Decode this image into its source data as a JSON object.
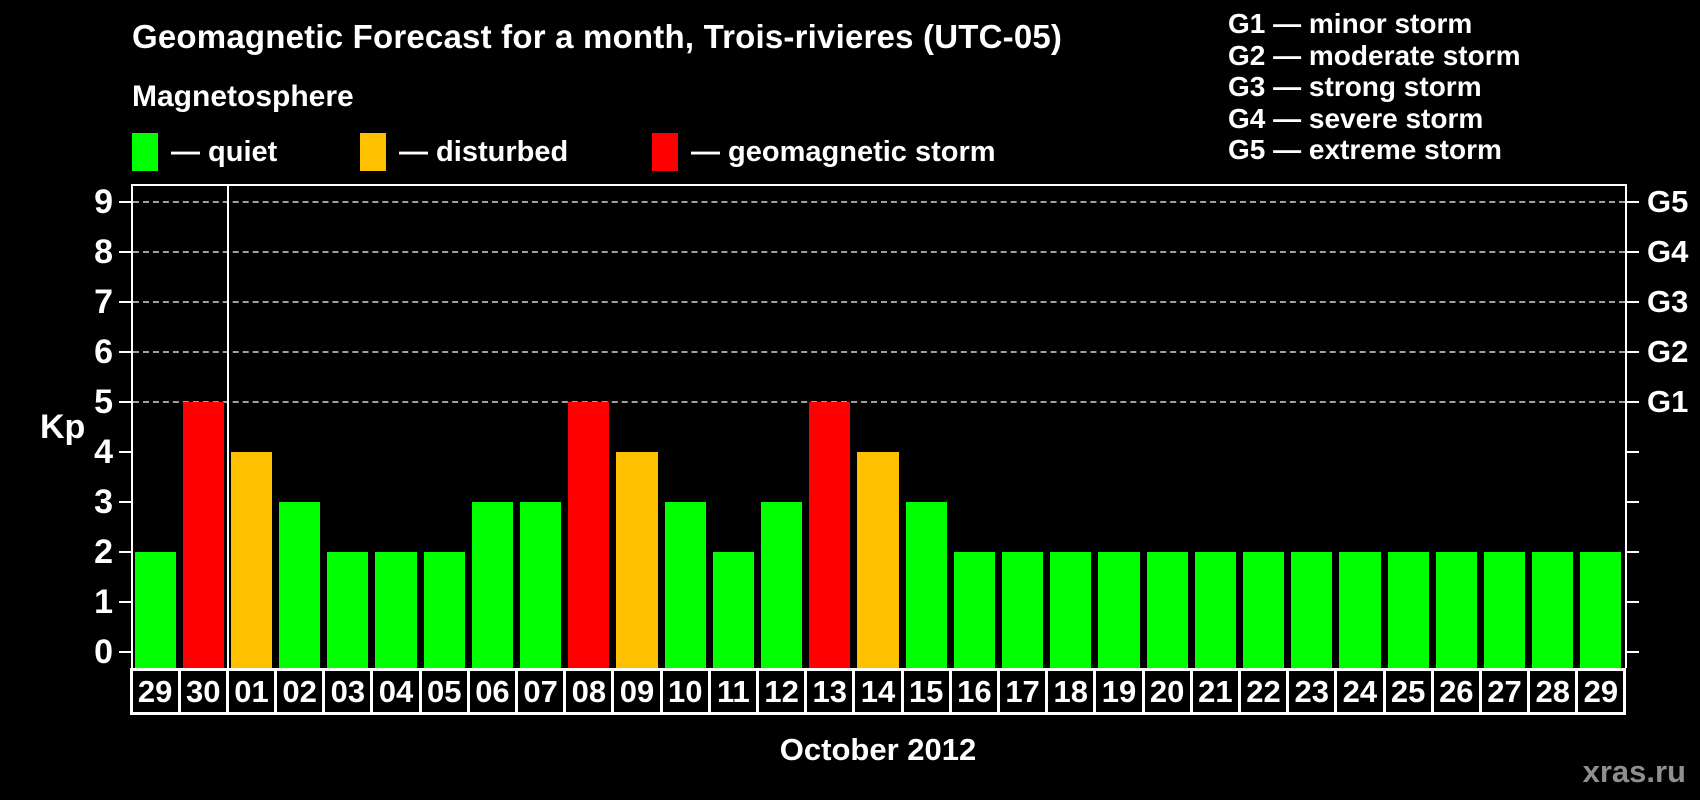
{
  "header": {
    "title": "Geomagnetic Forecast for a month, Trois-rivieres (UTC-05)",
    "subtitle": "Magnetosphere"
  },
  "legend": {
    "items": [
      {
        "name": "quiet",
        "label": "— quiet",
        "color": "#00ff00"
      },
      {
        "name": "disturbed",
        "label": "— disturbed",
        "color": "#ffc000"
      },
      {
        "name": "storm",
        "label": "— geomagnetic storm",
        "color": "#ff0000"
      }
    ]
  },
  "g_scale_legend": {
    "lines": [
      "G1 — minor storm",
      "G2 — moderate storm",
      "G3 — strong storm",
      "G4 — severe storm",
      "G5 — extreme storm"
    ]
  },
  "chart_data": {
    "type": "bar",
    "title": "Geomagnetic Forecast for a month, Trois-rivieres (UTC-05)",
    "ylabel": "Kp",
    "xlabel": "October 2012",
    "ylim": [
      0,
      9.4
    ],
    "grid": "horizontal dashed lines at Kp 5,6,7,8,9 only",
    "legend_position": "top",
    "y_ticks_left": [
      0,
      1,
      2,
      3,
      4,
      5,
      6,
      7,
      8,
      9
    ],
    "y_axis_right": [
      {
        "kp": 5,
        "label": "G1"
      },
      {
        "kp": 6,
        "label": "G2"
      },
      {
        "kp": 7,
        "label": "G3"
      },
      {
        "kp": 8,
        "label": "G4"
      },
      {
        "kp": 9,
        "label": "G5"
      }
    ],
    "month_boundary_before_category": "01",
    "categories": [
      "29",
      "30",
      "01",
      "02",
      "03",
      "04",
      "05",
      "06",
      "07",
      "08",
      "09",
      "10",
      "11",
      "12",
      "13",
      "14",
      "15",
      "16",
      "17",
      "18",
      "19",
      "20",
      "21",
      "22",
      "23",
      "24",
      "25",
      "26",
      "27",
      "28",
      "29"
    ],
    "values": [
      2,
      5,
      4,
      3,
      2,
      2,
      2,
      3,
      3,
      5,
      4,
      3,
      2,
      3,
      5,
      4,
      3,
      2,
      2,
      2,
      2,
      2,
      2,
      2,
      2,
      2,
      2,
      2,
      2,
      2,
      2
    ],
    "statuses": [
      "quiet",
      "storm",
      "disturbed",
      "quiet",
      "quiet",
      "quiet",
      "quiet",
      "quiet",
      "quiet",
      "storm",
      "disturbed",
      "quiet",
      "quiet",
      "quiet",
      "storm",
      "disturbed",
      "quiet",
      "quiet",
      "quiet",
      "quiet",
      "quiet",
      "quiet",
      "quiet",
      "quiet",
      "quiet",
      "quiet",
      "quiet",
      "quiet",
      "quiet",
      "quiet",
      "quiet"
    ],
    "colors": {
      "quiet": "#00ff00",
      "disturbed": "#ffc000",
      "storm": "#ff0000"
    }
  },
  "footer": {
    "xlabel": "October 2012",
    "watermark": "xras.ru"
  }
}
